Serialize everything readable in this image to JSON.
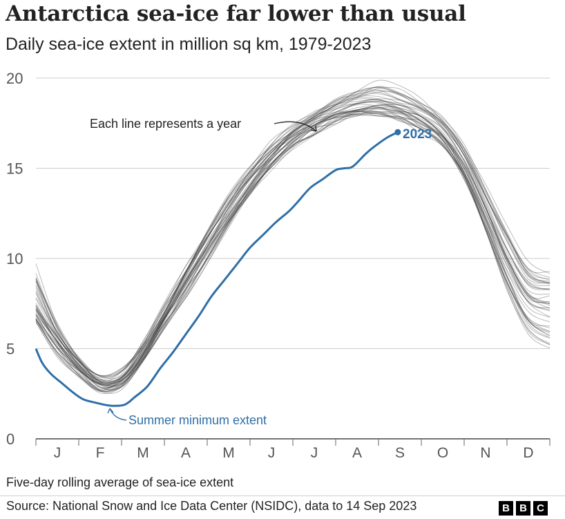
{
  "header": {
    "title": "Antarctica sea-ice far lower than usual",
    "subtitle": "Daily sea-ice extent in million sq km, 1979-2023"
  },
  "footer": {
    "note": "Five-day rolling average of sea-ice extent",
    "source": "Source: National Snow and Ice Data Center (NSIDC), data to 14 Sep 2023",
    "logo_letters": [
      "B",
      "B",
      "C"
    ]
  },
  "colors": {
    "highlight": "#2e6ea6",
    "historic": "#3a3a3a",
    "grid": "#cccccc",
    "text": "#222222"
  },
  "chart_data": {
    "type": "line",
    "title": "Antarctica sea-ice far lower than usual",
    "ylabel": "Daily sea-ice extent in million sq km",
    "xlabel": "",
    "ylim": [
      0,
      20
    ],
    "yticks": [
      0,
      5,
      10,
      15,
      20
    ],
    "xlim": [
      0,
      12
    ],
    "month_labels": [
      "J",
      "F",
      "M",
      "A",
      "M",
      "J",
      "J",
      "A",
      "S",
      "O",
      "N",
      "D"
    ],
    "grid": true,
    "historic_years": "1979-2022",
    "historic_envelope": {
      "x": [
        0,
        0.5,
        1,
        1.5,
        2,
        2.5,
        3,
        3.5,
        4,
        4.5,
        5,
        5.5,
        6,
        6.5,
        7,
        7.5,
        8,
        8.5,
        9,
        9.5,
        10,
        10.5,
        11,
        11.5,
        12
      ],
      "low": [
        6.5,
        4.8,
        3.6,
        2.7,
        2.9,
        4.3,
        6.2,
        8.0,
        9.9,
        11.8,
        13.5,
        15.0,
        16.2,
        17.0,
        17.6,
        17.9,
        17.9,
        17.7,
        17.2,
        16.3,
        14.4,
        11.5,
        8.3,
        6.0,
        5.2
      ],
      "mid": [
        7.3,
        5.5,
        4.0,
        3.0,
        3.3,
        4.8,
        6.8,
        8.8,
        10.7,
        12.6,
        14.3,
        15.7,
        16.8,
        17.5,
        18.1,
        18.5,
        18.6,
        18.3,
        17.7,
        16.8,
        15.2,
        12.7,
        10.0,
        8.0,
        7.6
      ],
      "high": [
        9.6,
        6.4,
        4.6,
        3.5,
        3.8,
        5.4,
        7.5,
        9.6,
        11.6,
        13.5,
        15.1,
        16.4,
        17.4,
        18.2,
        18.8,
        19.3,
        19.7,
        19.5,
        18.9,
        17.9,
        16.3,
        14.0,
        11.8,
        9.8,
        9.4
      ]
    },
    "series": [
      {
        "name": "2023",
        "x": [
          0,
          0.15,
          0.35,
          0.6,
          0.85,
          1.1,
          1.4,
          1.7,
          2.0,
          2.15,
          2.3,
          2.6,
          2.9,
          3.2,
          3.5,
          3.8,
          4.1,
          4.4,
          4.7,
          5.0,
          5.3,
          5.6,
          5.9,
          6.1,
          6.4,
          6.7,
          7.0,
          7.2,
          7.4,
          7.7,
          7.9,
          8.2,
          8.45
        ],
        "values": [
          5.0,
          4.2,
          3.6,
          3.1,
          2.6,
          2.2,
          2.0,
          1.85,
          1.85,
          2.0,
          2.3,
          2.9,
          3.9,
          4.8,
          5.8,
          6.8,
          7.9,
          8.8,
          9.7,
          10.6,
          11.3,
          12.0,
          12.6,
          13.1,
          13.9,
          14.4,
          14.9,
          15.0,
          15.1,
          15.8,
          16.2,
          16.7,
          17.0
        ]
      }
    ],
    "end_label": "2023",
    "annotations": [
      {
        "text": "Each line represents a year",
        "target": "historic lines in July-August"
      },
      {
        "text": "Summer minimum extent",
        "target": "2023 line at February minimum"
      }
    ],
    "legend": "none"
  }
}
